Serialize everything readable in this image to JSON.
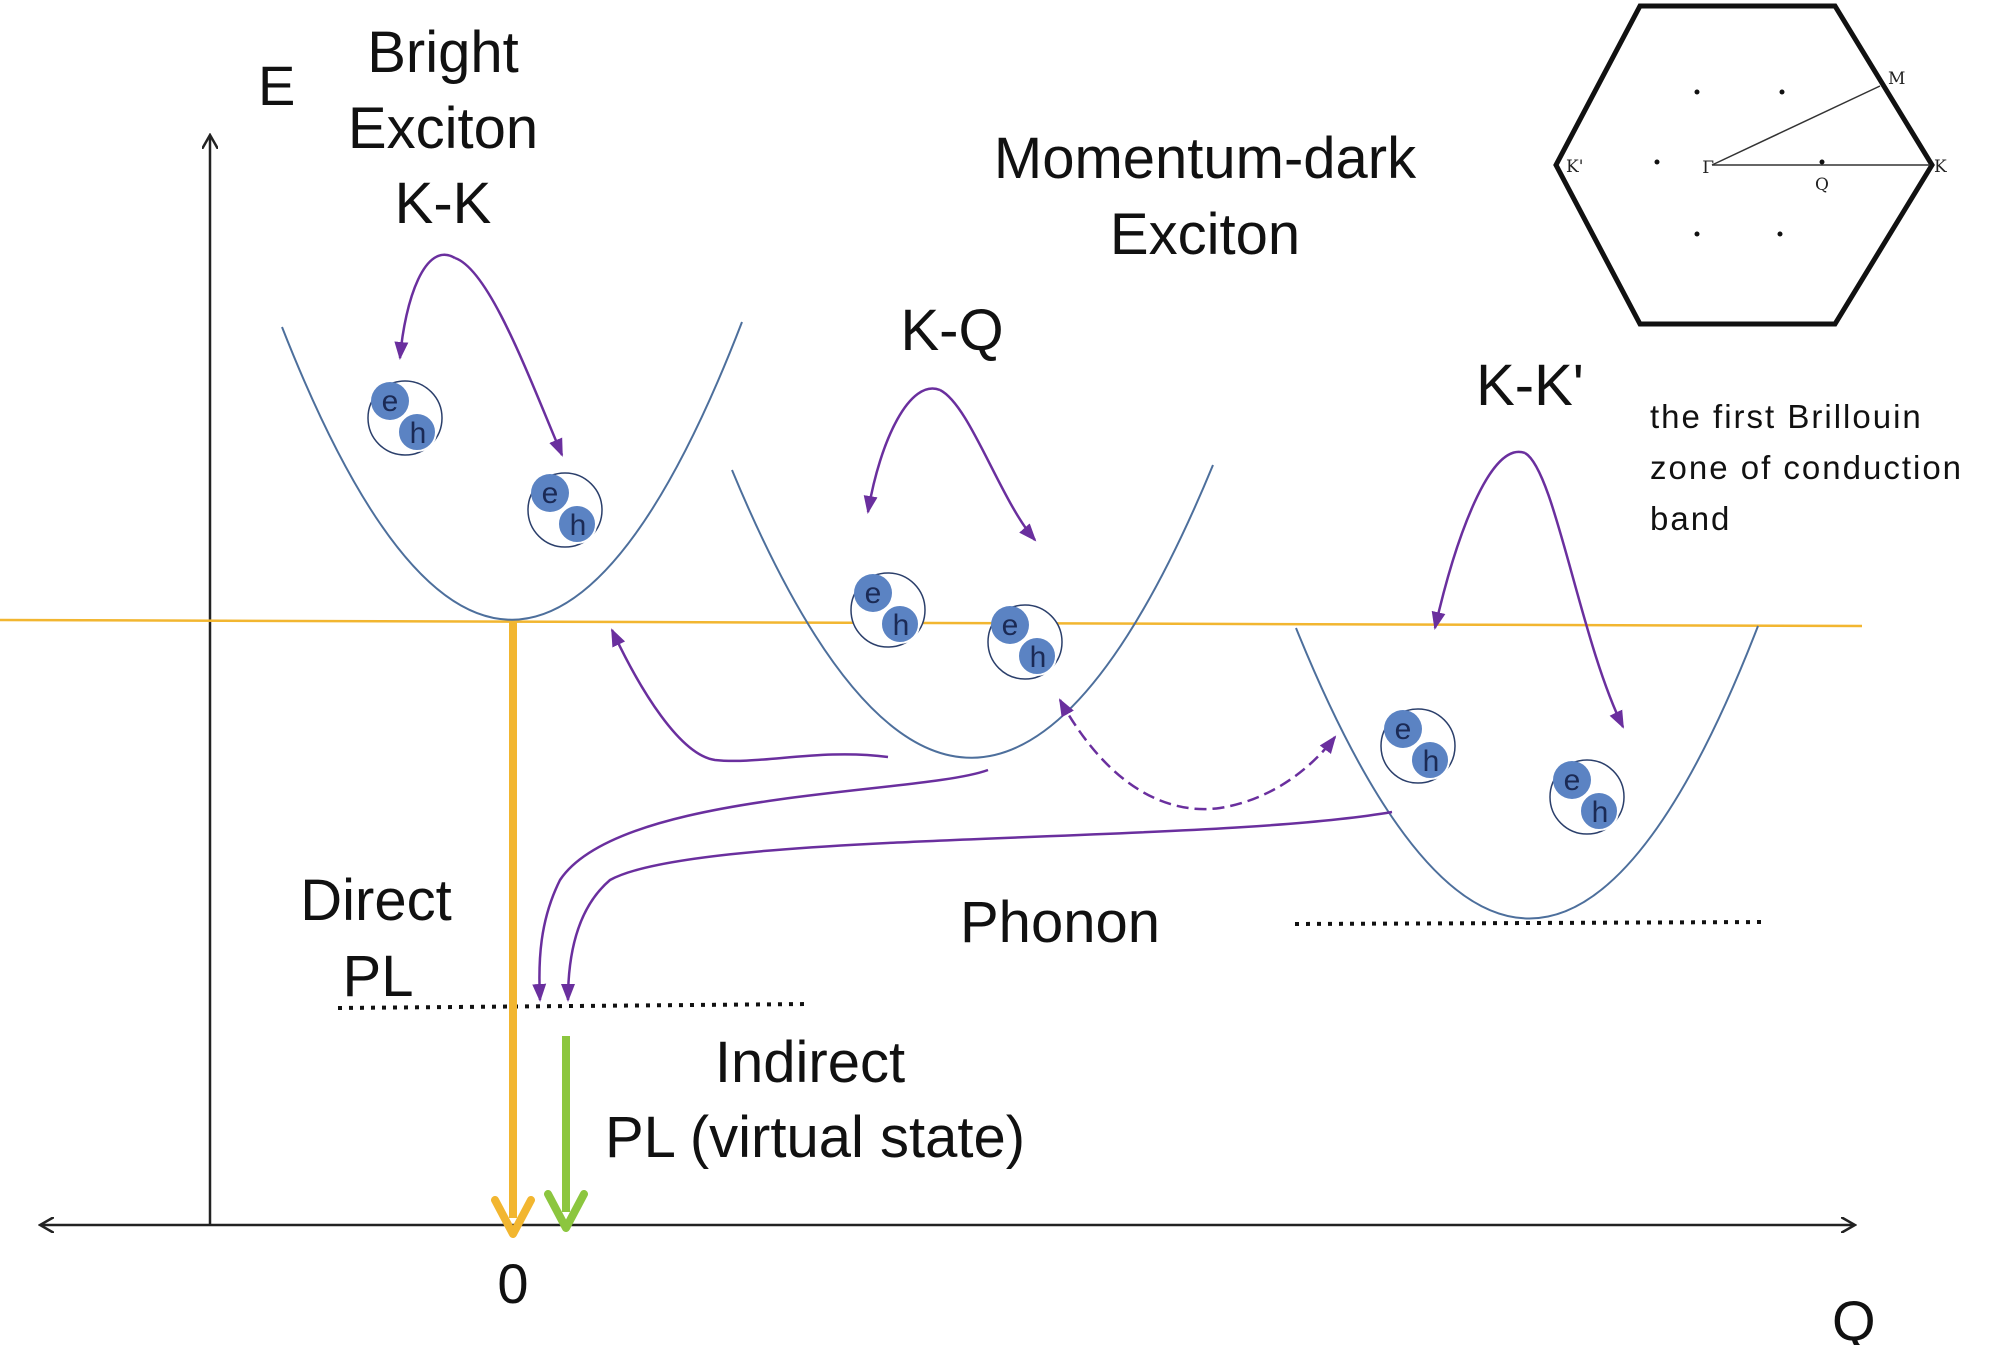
{
  "axes": {
    "y_label": "E",
    "x_label": "Q",
    "origin_label": "0"
  },
  "labels": {
    "bright_exciton": [
      "Bright",
      "Exciton",
      "K-K"
    ],
    "momentum_dark": [
      "Momentum-dark",
      "Exciton"
    ],
    "kq": "K-Q",
    "kkprime": "K-K'",
    "direct_pl": [
      "Direct",
      "PL"
    ],
    "indirect_pl": [
      "Indirect",
      "PL (virtual state)"
    ],
    "phonon": "Phonon"
  },
  "brillouin_zone": {
    "caption": [
      "the first Brillouin",
      "zone of conduction",
      "band"
    ],
    "points": {
      "gamma": "Γ",
      "m": "M",
      "k": "K",
      "kprime": "K'",
      "q": "Q"
    }
  },
  "exciton": {
    "electron": "e",
    "hole": "h"
  },
  "colors": {
    "band_curve": "#4d6f9c",
    "fermi_line": "#f2b630",
    "direct_pl_arrow": "#f2b630",
    "indirect_pl_arrow": "#8cc63f",
    "transition_arrow": "#6a2f9e",
    "exciton_fill": "#5b83c3",
    "axis": "#222222"
  }
}
